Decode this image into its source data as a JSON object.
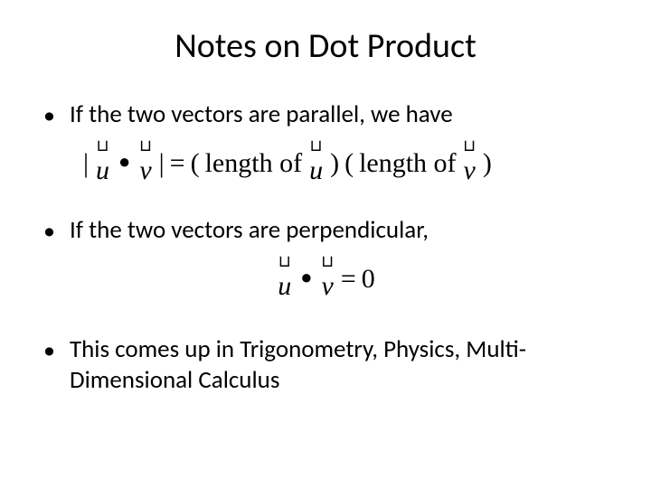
{
  "title": "Notes on Dot Product",
  "bullets": {
    "b1": "If the two vectors are parallel, we have",
    "b2": "If the two vectors are perpendicular,",
    "b3": "This comes up in Trigonometry, Physics, Multi-Dimensional Calculus"
  },
  "eq1": {
    "lbar1": "|",
    "u_label": "u",
    "u_arrow": "⊔",
    "dot": "●",
    "v_label": "v",
    "v_arrow": "⊔",
    "lbar2": "|",
    "eq": "=",
    "lp1": "(",
    "len_u": "length of",
    "u2_label": "u",
    "u2_arrow": "⊔",
    "rp1": ")",
    "lp2": "(",
    "len_v": "length of",
    "v2_label": "v",
    "v2_arrow": "⊔",
    "rp2": ")"
  },
  "eq2": {
    "u_label": "u",
    "u_arrow": "⊔",
    "dot": "●",
    "v_label": "v",
    "v_arrow": "⊔",
    "eq": "=",
    "zero": "0"
  },
  "style": {
    "background": "#ffffff",
    "text_color": "#000000",
    "title_fontsize": 38,
    "body_fontsize": 27,
    "equation_fontsize": 30,
    "body_font": "Calibri",
    "equation_font": "Times New Roman"
  }
}
